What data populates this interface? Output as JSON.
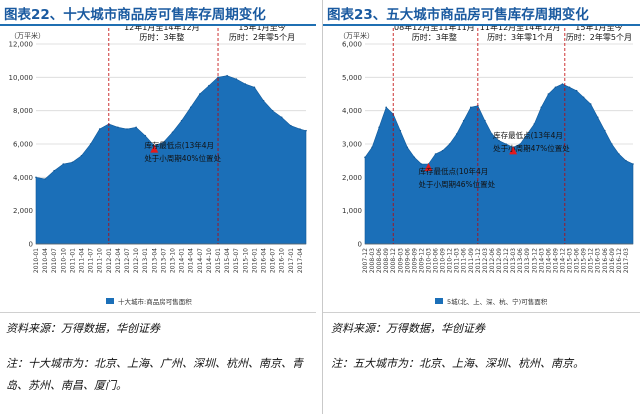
{
  "panels": [
    {
      "title": "图表22、十大城市商品房可售库存周期变化",
      "source": "资料来源：万得数据，华创证券",
      "note": "注：十大城市为：北京、上海、广州、深圳、杭州、南京、青岛、苏州、南昌、厦门。"
    },
    {
      "title": "图表23、五大城市商品房可售库存周期变化",
      "source": "资料来源：万得数据，华创证券",
      "note": "注：五大城市为：北京、上海、深圳、杭州、南京。"
    }
  ],
  "chart_data": [
    {
      "type": "area",
      "unit_label": "（万平米）",
      "ylim": [
        0,
        12000
      ],
      "y_ticks": [
        "0",
        "2,000",
        "4,000",
        "6,000",
        "8,000",
        "10,000",
        "12,000"
      ],
      "x_tick_labels": [
        "2010-01",
        "2010-04",
        "2010-07",
        "2010-10",
        "2011-01",
        "2011-04",
        "2011-07",
        "2011-10",
        "2012-01",
        "2012-04",
        "2012-07",
        "2012-10",
        "2013-01",
        "2013-04",
        "2013-07",
        "2013-10",
        "2014-01",
        "2014-04",
        "2014-07",
        "2014-10",
        "2015-01",
        "2015-04",
        "2015-07",
        "2015-10",
        "2016-01",
        "2016-04",
        "2016-07",
        "2016-10",
        "2017-01",
        "2017-04"
      ],
      "legend": "十大城市:商品房可售面积",
      "color": "#1b6fb8",
      "x": [
        "2010-01",
        "2010-04",
        "2010-07",
        "2010-10",
        "2011-01",
        "2011-04",
        "2011-07",
        "2011-10",
        "2012-01",
        "2012-04",
        "2012-07",
        "2012-10",
        "2013-01",
        "2013-04",
        "2013-07",
        "2013-10",
        "2014-01",
        "2014-04",
        "2014-07",
        "2014-10",
        "2015-01",
        "2015-04",
        "2015-07",
        "2015-10",
        "2016-01",
        "2016-04",
        "2016-07",
        "2016-10",
        "2017-01",
        "2017-04",
        "2017-06"
      ],
      "values": [
        4000,
        3900,
        4400,
        4800,
        4900,
        5300,
        6000,
        6900,
        7200,
        7000,
        6900,
        7000,
        6500,
        5900,
        6100,
        6700,
        7400,
        8200,
        9000,
        9500,
        10000,
        10100,
        9900,
        9600,
        9400,
        8600,
        8000,
        7600,
        7100,
        6900,
        6800
      ],
      "annotations": [
        {
          "text_lines": [
            "12年1月至14年12月",
            "历时：3年整"
          ],
          "x_start": "2012-01",
          "x_end": "2014-12"
        },
        {
          "text_lines": [
            "15年1月至今",
            "历时：2年零5个月"
          ],
          "x_start": "2015-01",
          "x_end": "2017-06"
        }
      ],
      "low_point": {
        "x": "2013-04",
        "value": 5900,
        "label_lines": [
          "库存最低点(13年4月",
          "处于小周期40%位置处"
        ]
      }
    },
    {
      "type": "area",
      "unit_label": "（万平米）",
      "ylim": [
        0,
        6000
      ],
      "y_ticks": [
        "0",
        "1,000",
        "2,000",
        "3,000",
        "4,000",
        "5,000",
        "6,000"
      ],
      "x_tick_labels": [
        "2007-12",
        "2008-03",
        "2008-06",
        "2008-09",
        "2008-12",
        "2009-03",
        "2009-06",
        "2009-09",
        "2009-12",
        "2010-03",
        "2010-06",
        "2010-09",
        "2010-12",
        "2011-03",
        "2011-06",
        "2011-09",
        "2011-12",
        "2012-03",
        "2012-06",
        "2012-09",
        "2012-12",
        "2013-03",
        "2013-06",
        "2013-09",
        "2013-12",
        "2014-03",
        "2014-06",
        "2014-09",
        "2014-12",
        "2015-03",
        "2015-06",
        "2015-09",
        "2015-12",
        "2016-03",
        "2016-06",
        "2016-09",
        "2016-12",
        "2017-03"
      ],
      "legend": "5城(北、上、深、杭、宁)可售面积",
      "color": "#1b6fb8",
      "x": [
        "2007-12",
        "2008-03",
        "2008-06",
        "2008-09",
        "2008-12",
        "2009-03",
        "2009-06",
        "2009-09",
        "2009-12",
        "2010-03",
        "2010-06",
        "2010-09",
        "2010-12",
        "2011-03",
        "2011-06",
        "2011-09",
        "2011-12",
        "2012-03",
        "2012-06",
        "2012-09",
        "2012-12",
        "2013-03",
        "2013-06",
        "2013-09",
        "2013-12",
        "2014-03",
        "2014-06",
        "2014-09",
        "2014-12",
        "2015-03",
        "2015-06",
        "2015-09",
        "2015-12",
        "2016-03",
        "2016-06",
        "2016-09",
        "2016-12",
        "2017-03",
        "2017-06"
      ],
      "values": [
        2600,
        2900,
        3500,
        4100,
        3900,
        3400,
        2900,
        2600,
        2400,
        2400,
        2700,
        2800,
        3000,
        3300,
        3700,
        4100,
        4150,
        3700,
        3300,
        3100,
        3000,
        2900,
        3000,
        3300,
        3600,
        4100,
        4500,
        4700,
        4800,
        4700,
        4600,
        4400,
        4200,
        3800,
        3400,
        3000,
        2700,
        2500,
        2400
      ],
      "annotations": [
        {
          "text_lines": [
            "08年12月至11年11月",
            "历时：3年整"
          ],
          "x_start": "2008-12",
          "x_end": "2011-11"
        },
        {
          "text_lines": [
            "11年12月至14年12月",
            "历时：3年零1个月"
          ],
          "x_start": "2011-12",
          "x_end": "2014-12"
        },
        {
          "text_lines": [
            "15年1月至今",
            "历时：2年零5个月"
          ],
          "x_start": "2015-01",
          "x_end": "2017-06"
        }
      ],
      "low_points": [
        {
          "x": "2013-03",
          "value": 2900,
          "label_lines": [
            "库存最低点(13年4月",
            "处于小周期47%位置处"
          ]
        },
        {
          "x": "2010-03",
          "value": 2400,
          "label_lines": [
            "库存最低点(10年4月",
            "处于小周期46%位置处"
          ]
        }
      ]
    }
  ]
}
